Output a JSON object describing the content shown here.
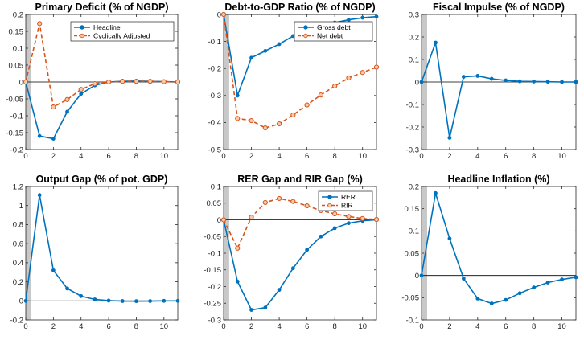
{
  "colors": {
    "headline": "#0072BD",
    "cyclical": "#D95319",
    "zero_line": "#000000",
    "shade": "#c8c8c8",
    "axis": "#262626"
  },
  "chart_data": [
    {
      "type": "line",
      "title": "Primary Deficit (% of NGDP)",
      "x": [
        0,
        1,
        2,
        3,
        4,
        5,
        6,
        7,
        8,
        9,
        10,
        11
      ],
      "xlim": [
        0,
        11
      ],
      "xticks": [
        0,
        2,
        4,
        6,
        8,
        10
      ],
      "xtick_labels": [
        "0",
        "2",
        "4",
        "6",
        "8",
        "10"
      ],
      "ylim": [
        -0.2,
        0.2
      ],
      "yticks": [
        -0.2,
        -0.15,
        -0.1,
        -0.05,
        0,
        0.05,
        0.1,
        0.15,
        0.2
      ],
      "ytick_labels": [
        "-0.2",
        "-0.15",
        "-0.1",
        "-0.05",
        "0",
        "0.05",
        "0.1",
        "0.15",
        "0.2"
      ],
      "shade": [
        0,
        0.4
      ],
      "legend_position": "top-right",
      "series": [
        {
          "name": "Headline",
          "style": "solid",
          "values": [
            0,
            -0.16,
            -0.168,
            -0.088,
            -0.035,
            -0.01,
            0,
            0.002,
            0.003,
            0.002,
            0.001,
            0
          ]
        },
        {
          "name": "Cyclically Adjusted",
          "style": "dashed",
          "values": [
            0,
            0.173,
            -0.074,
            -0.052,
            -0.022,
            -0.005,
            0,
            0.002,
            0.002,
            0.002,
            0.001,
            0
          ]
        }
      ]
    },
    {
      "type": "line",
      "title": "Debt-to-GDP Ratio (% of NGDP)",
      "x": [
        0,
        1,
        2,
        3,
        4,
        5,
        6,
        7,
        8,
        9,
        10,
        11
      ],
      "xlim": [
        0,
        11
      ],
      "xticks": [
        0,
        2,
        4,
        6,
        8,
        10
      ],
      "xtick_labels": [
        "0",
        "2",
        "4",
        "6",
        "8",
        "10"
      ],
      "ylim": [
        -0.5,
        0
      ],
      "yticks": [
        -0.5,
        -0.4,
        -0.3,
        -0.2,
        -0.1,
        0
      ],
      "ytick_labels": [
        "-0.5",
        "-0.4",
        "-0.3",
        "-0.2",
        "-0.1",
        "0"
      ],
      "shade": [
        0,
        0.4
      ],
      "legend_position": "top-right",
      "series": [
        {
          "name": "Gross debt",
          "style": "solid",
          "values": [
            0,
            -0.3,
            -0.16,
            -0.135,
            -0.11,
            -0.08,
            -0.06,
            -0.042,
            -0.03,
            -0.02,
            -0.012,
            -0.008
          ]
        },
        {
          "name": "Net debt",
          "style": "dashed",
          "values": [
            0,
            -0.385,
            -0.393,
            -0.42,
            -0.405,
            -0.372,
            -0.335,
            -0.298,
            -0.265,
            -0.235,
            -0.215,
            -0.195
          ]
        }
      ]
    },
    {
      "type": "line",
      "title": "Fiscal Impulse (% of NGDP)",
      "x": [
        0,
        1,
        2,
        3,
        4,
        5,
        6,
        7,
        8,
        9,
        10,
        11
      ],
      "xlim": [
        0,
        11
      ],
      "xticks": [
        0,
        2,
        4,
        6,
        8,
        10
      ],
      "xtick_labels": [
        "0",
        "2",
        "4",
        "6",
        "8",
        "10"
      ],
      "ylim": [
        -0.3,
        0.3
      ],
      "yticks": [
        -0.3,
        -0.2,
        -0.1,
        0,
        0.1,
        0.2,
        0.3
      ],
      "ytick_labels": [
        "-0.3",
        "-0.2",
        "-0.1",
        "0",
        "0.1",
        "0.2",
        "0.3"
      ],
      "shade": [
        0,
        0.4
      ],
      "series": [
        {
          "name": "",
          "style": "solid",
          "values": [
            0,
            0.175,
            -0.248,
            0.023,
            0.027,
            0.014,
            0.007,
            0.003,
            0.002,
            0.001,
            0,
            0
          ]
        }
      ]
    },
    {
      "type": "line",
      "title": "Output Gap (% of pot. GDP)",
      "x": [
        0,
        1,
        2,
        3,
        4,
        5,
        6,
        7,
        8,
        9,
        10,
        11
      ],
      "xlim": [
        0,
        11
      ],
      "xticks": [
        0,
        2,
        4,
        6,
        8,
        10
      ],
      "xtick_labels": [
        "0",
        "2",
        "4",
        "6",
        "8",
        "10"
      ],
      "ylim": [
        -0.2,
        1.2
      ],
      "yticks": [
        -0.2,
        0,
        0.2,
        0.4,
        0.6,
        0.8,
        1,
        1.2
      ],
      "ytick_labels": [
        "-0.2",
        "0",
        "0.2",
        "0.4",
        "0.6",
        "0.8",
        "1",
        "1.2"
      ],
      "shade": [
        0,
        0.4
      ],
      "series": [
        {
          "name": "",
          "style": "solid",
          "values": [
            0,
            1.11,
            0.32,
            0.13,
            0.05,
            0.015,
            0.003,
            -0.002,
            -0.003,
            -0.002,
            0,
            0
          ]
        }
      ]
    },
    {
      "type": "line",
      "title": "RER Gap and RIR Gap (%)",
      "x": [
        0,
        1,
        2,
        3,
        4,
        5,
        6,
        7,
        8,
        9,
        10,
        11
      ],
      "xlim": [
        0,
        11
      ],
      "xticks": [
        0,
        2,
        4,
        6,
        8,
        10
      ],
      "xtick_labels": [
        "0",
        "2",
        "4",
        "6",
        "8",
        "10"
      ],
      "ylim": [
        -0.3,
        0.1
      ],
      "yticks": [
        -0.3,
        -0.25,
        -0.2,
        -0.15,
        -0.1,
        -0.05,
        0,
        0.05,
        0.1
      ],
      "ytick_labels": [
        "-0.3",
        "-0.25",
        "-0.2",
        "-0.15",
        "-0.1",
        "-0.05",
        "0",
        "0.05",
        "0.1"
      ],
      "shade": [
        0,
        0.4
      ],
      "legend_position": "top-right",
      "series": [
        {
          "name": "RER",
          "style": "solid",
          "values": [
            0,
            -0.185,
            -0.27,
            -0.263,
            -0.21,
            -0.145,
            -0.09,
            -0.05,
            -0.025,
            -0.01,
            -0.003,
            0
          ]
        },
        {
          "name": "RIR",
          "style": "dashed",
          "values": [
            0,
            -0.085,
            0.008,
            0.052,
            0.064,
            0.055,
            0.042,
            0.028,
            0.018,
            0.01,
            0.004,
            0.001
          ]
        }
      ]
    },
    {
      "type": "line",
      "title": "Headline Inflation (%)",
      "x": [
        0,
        1,
        2,
        3,
        4,
        5,
        6,
        7,
        8,
        9,
        10,
        11
      ],
      "xlim": [
        0,
        11
      ],
      "xticks": [
        0,
        2,
        4,
        6,
        8,
        10
      ],
      "xtick_labels": [
        "0",
        "2",
        "4",
        "6",
        "8",
        "10"
      ],
      "ylim": [
        -0.1,
        0.2
      ],
      "yticks": [
        -0.1,
        -0.05,
        0,
        0.05,
        0.1,
        0.15,
        0.2
      ],
      "ytick_labels": [
        "-0.1",
        "-0.05",
        "0",
        "0.05",
        "0.1",
        "0.15",
        "0.2"
      ],
      "shade": [
        0,
        0.4
      ],
      "series": [
        {
          "name": "",
          "style": "solid",
          "values": [
            0,
            0.185,
            0.083,
            -0.007,
            -0.052,
            -0.063,
            -0.055,
            -0.04,
            -0.027,
            -0.016,
            -0.009,
            -0.004
          ]
        }
      ]
    }
  ]
}
